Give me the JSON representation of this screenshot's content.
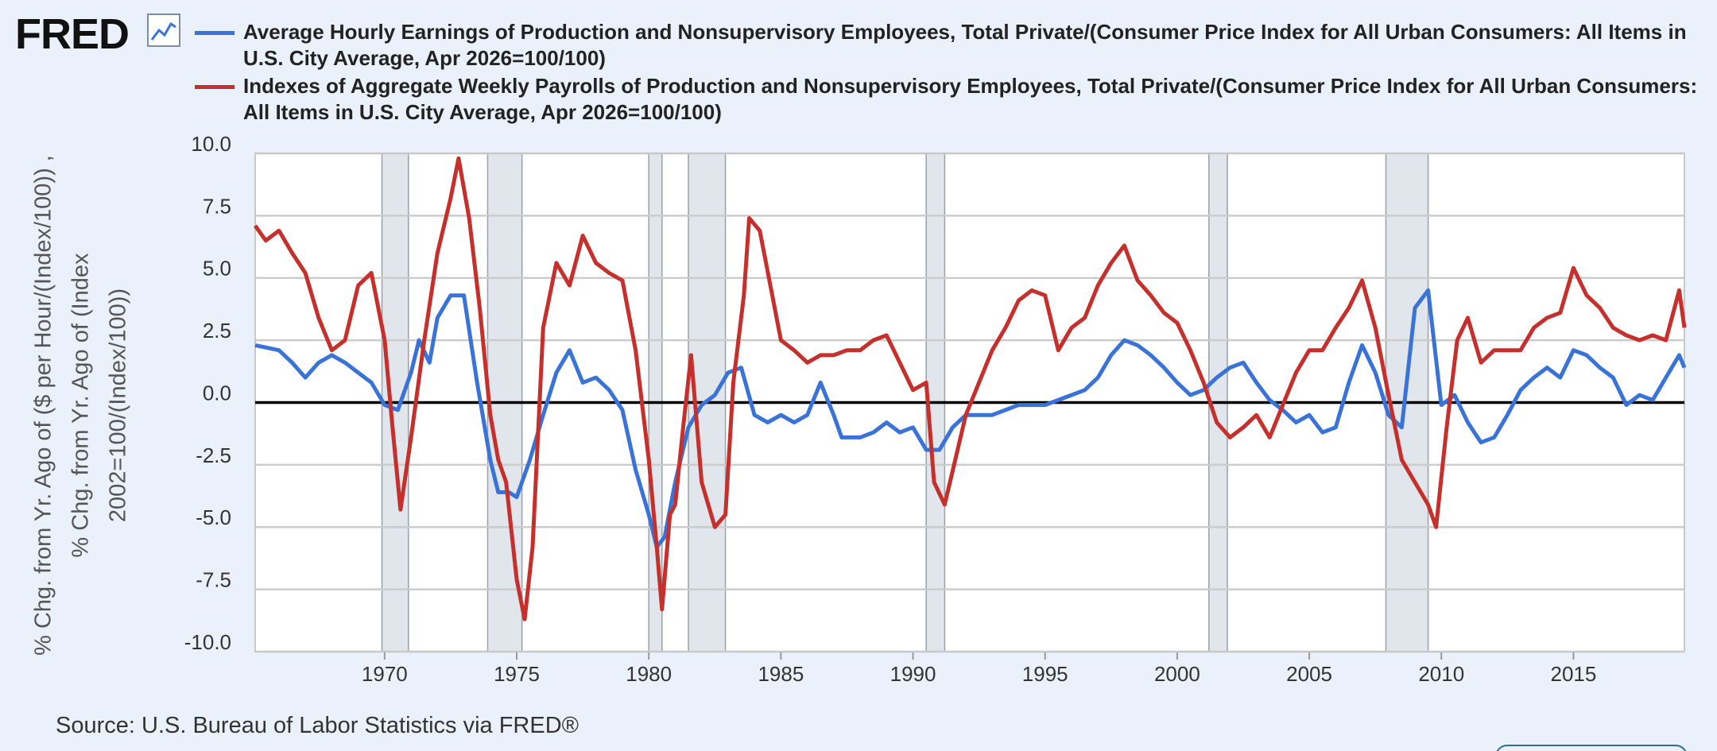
{
  "logo": "FRED",
  "chart_data": {
    "type": "line",
    "y_label": "% Chg. from Yr. Ago of ($ per Hour/(Index/100)) , % Chg. from Yr. Ago of (Index 2002=100/(Index/100))",
    "source": "Source: U.S. Bureau of Labor Statistics via FRED®",
    "xlim": [
      1965.1,
      2019.2
    ],
    "xticks": [
      1970,
      1975,
      1980,
      1985,
      1990,
      1995,
      2000,
      2005,
      2010,
      2015
    ],
    "ylim": [
      -10,
      10
    ],
    "yticks": [
      {
        "value": 10,
        "label": "10.0"
      },
      7.5,
      {
        "value": 5,
        "label": "5.0"
      },
      2.5,
      {
        "value": 0,
        "label": "0.0"
      },
      -2.5,
      {
        "value": -5,
        "label": "-5.0"
      },
      -7.5,
      {
        "value": -10,
        "label": "-10.0"
      }
    ],
    "grid": true,
    "hline": 0,
    "recessions": [
      [
        1969.9,
        1970.9
      ],
      [
        1973.9,
        1975.2
      ],
      [
        1980.0,
        1980.5
      ],
      [
        1981.5,
        1982.9
      ],
      [
        1990.5,
        1991.2
      ],
      [
        2001.2,
        2001.9
      ],
      [
        2007.9,
        2009.5
      ]
    ],
    "series": [
      {
        "name": "Average Hourly Earnings of Production and Nonsupervisory Employees, Total Private/(Consumer Price Index for All Urban Consumers: All Items in U.S. City Average, Apr 2026=100/100)",
        "color": "#3a73d8",
        "x": [
          1965.1,
          1966,
          1966.5,
          1967,
          1967.5,
          1968,
          1968.5,
          1969,
          1969.5,
          1970,
          1970.5,
          1971,
          1971.3,
          1971.7,
          1972,
          1972.5,
          1973,
          1973.5,
          1974,
          1974.3,
          1974.7,
          1975,
          1975.5,
          1976,
          1976.5,
          1977,
          1977.5,
          1978,
          1978.5,
          1979,
          1979.5,
          1980,
          1980.3,
          1980.6,
          1981,
          1981.5,
          1982,
          1982.5,
          1983,
          1983.5,
          1984,
          1984.5,
          1985,
          1985.5,
          1986,
          1986.5,
          1987,
          1987.3,
          1988,
          1988.5,
          1989,
          1989.5,
          1990,
          1990.5,
          1991,
          1991.5,
          1992,
          1993,
          1993.5,
          1994,
          1995,
          1995.5,
          1996,
          1996.5,
          1997,
          1997.5,
          1998,
          1998.5,
          1999,
          1999.5,
          2000,
          2000.5,
          2001,
          2001.5,
          2002,
          2002.5,
          2003,
          2003.5,
          2004,
          2004.5,
          2005,
          2005.5,
          2006,
          2006.5,
          2007,
          2007.5,
          2008,
          2008.5,
          2009,
          2009.5,
          2010,
          2010.5,
          2011,
          2011.5,
          2012,
          2012.5,
          2013,
          2013.5,
          2014,
          2014.5,
          2015,
          2015.5,
          2016,
          2016.5,
          2017,
          2017.5,
          2018,
          2018.5,
          2019,
          2019.2
        ],
        "values": [
          2.3,
          2.1,
          1.6,
          1.0,
          1.6,
          1.9,
          1.6,
          1.2,
          0.8,
          -0.1,
          -0.3,
          1.2,
          2.5,
          1.6,
          3.4,
          4.3,
          4.3,
          0.8,
          -2.3,
          -3.6,
          -3.6,
          -3.8,
          -2.3,
          -0.5,
          1.2,
          2.1,
          0.8,
          1.0,
          0.5,
          -0.3,
          -2.7,
          -4.5,
          -5.8,
          -5.4,
          -3.2,
          -1.0,
          -0.1,
          0.3,
          1.2,
          1.4,
          -0.5,
          -0.8,
          -0.5,
          -0.8,
          -0.5,
          0.8,
          -0.5,
          -1.4,
          -1.4,
          -1.2,
          -0.8,
          -1.2,
          -1.0,
          -1.9,
          -1.9,
          -1.0,
          -0.5,
          -0.5,
          -0.3,
          -0.1,
          -0.1,
          0.1,
          0.3,
          0.5,
          1.0,
          1.9,
          2.5,
          2.3,
          1.9,
          1.4,
          0.8,
          0.3,
          0.5,
          1.0,
          1.4,
          1.6,
          0.8,
          0.1,
          -0.3,
          -0.8,
          -0.5,
          -1.2,
          -1.0,
          0.8,
          2.3,
          1.2,
          -0.5,
          -1.0,
          3.8,
          4.5,
          -0.1,
          0.3,
          -0.8,
          -1.6,
          -1.4,
          -0.5,
          0.5,
          1.0,
          1.4,
          1.0,
          2.1,
          1.9,
          1.4,
          1.0,
          -0.1,
          0.3,
          0.1,
          1.0,
          1.9,
          1.4
        ]
      },
      {
        "name": "Indexes of Aggregate Weekly Payrolls of Production and Nonsupervisory Employees, Total Private/(Consumer Price Index for All Urban Consumers: All Items in U.S. City Average, Apr 2026=100/100)",
        "color": "#c6302c",
        "x": [
          1965.1,
          1965.5,
          1966,
          1966.5,
          1967,
          1967.5,
          1968,
          1968.5,
          1969,
          1969.5,
          1970,
          1970.3,
          1970.6,
          1971,
          1971.5,
          1972,
          1972.5,
          1972.8,
          1973.2,
          1973.6,
          1974,
          1974.3,
          1974.6,
          1975,
          1975.3,
          1975.6,
          1976,
          1976.5,
          1977,
          1977.5,
          1978,
          1978.5,
          1979,
          1979.5,
          1980,
          1980.3,
          1980.5,
          1980.8,
          1981,
          1981.3,
          1981.6,
          1982,
          1982.5,
          1982.9,
          1983.2,
          1983.6,
          1983.8,
          1984.2,
          1984.6,
          1985,
          1985.5,
          1986,
          1986.5,
          1987,
          1987.5,
          1988,
          1988.5,
          1989,
          1989.5,
          1990,
          1990.5,
          1990.8,
          1991.2,
          1991.6,
          1992,
          1992.5,
          1993,
          1993.5,
          1994,
          1994.5,
          1995,
          1995.5,
          1996,
          1996.5,
          1997,
          1997.5,
          1998,
          1998.5,
          1999,
          1999.5,
          2000,
          2000.5,
          2001,
          2001.5,
          2002,
          2002.5,
          2003,
          2003.5,
          2004,
          2004.5,
          2005,
          2005.5,
          2006,
          2006.5,
          2007,
          2007.5,
          2008,
          2008.5,
          2009,
          2009.5,
          2009.8,
          2010.2,
          2010.6,
          2011,
          2011.5,
          2012,
          2012.5,
          2013,
          2013.5,
          2014,
          2014.5,
          2015,
          2015.5,
          2016,
          2016.5,
          2017,
          2017.5,
          2018,
          2018.5,
          2019,
          2019.2
        ],
        "values": [
          7.1,
          6.5,
          6.9,
          6.0,
          5.2,
          3.4,
          2.1,
          2.5,
          4.7,
          5.2,
          2.5,
          -1.0,
          -4.3,
          -1.4,
          2.5,
          6.0,
          8.2,
          9.8,
          7.4,
          3.8,
          -0.5,
          -2.3,
          -3.2,
          -7.1,
          -8.7,
          -5.8,
          3.0,
          5.6,
          4.7,
          6.7,
          5.6,
          5.2,
          4.9,
          2.1,
          -2.3,
          -5.8,
          -8.3,
          -4.5,
          -4.1,
          -1.0,
          1.9,
          -3.2,
          -5.0,
          -4.5,
          0.8,
          4.3,
          7.4,
          6.9,
          4.7,
          2.5,
          2.1,
          1.6,
          1.9,
          1.9,
          2.1,
          2.1,
          2.5,
          2.7,
          1.6,
          0.5,
          0.8,
          -3.2,
          -4.1,
          -2.3,
          -0.5,
          0.8,
          2.1,
          3.0,
          4.1,
          4.5,
          4.3,
          2.1,
          3.0,
          3.4,
          4.7,
          5.6,
          6.3,
          4.9,
          4.3,
          3.6,
          3.2,
          2.1,
          0.8,
          -0.8,
          -1.4,
          -1.0,
          -0.5,
          -1.4,
          -0.1,
          1.2,
          2.1,
          2.1,
          3.0,
          3.8,
          4.9,
          3.0,
          0.3,
          -2.3,
          -3.2,
          -4.1,
          -5.0,
          -1.0,
          2.5,
          3.4,
          1.6,
          2.1,
          2.1,
          2.1,
          3.0,
          3.4,
          3.6,
          5.4,
          4.3,
          3.8,
          3.0,
          2.7,
          2.5,
          2.7,
          2.5,
          4.5,
          3.0
        ]
      }
    ]
  }
}
